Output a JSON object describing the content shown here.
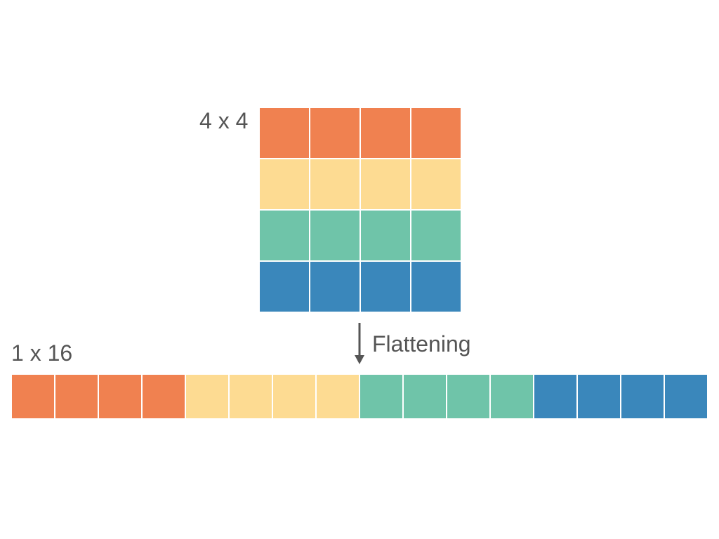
{
  "labels": {
    "matrix": "4 x 4",
    "vector": "1 x 16",
    "operation": "Flattening"
  },
  "matrix": {
    "rows": 4,
    "cols": 4,
    "row_colors": [
      "#f08150",
      "#fddb92",
      "#6fc4a9",
      "#3a87bb"
    ]
  },
  "vector": {
    "length": 16,
    "segment_size": 4,
    "segment_colors": [
      "#f08150",
      "#fddb92",
      "#6fc4a9",
      "#3a87bb"
    ]
  },
  "colors": {
    "text": "#555555",
    "arrow": "#555555"
  },
  "icons": {
    "arrow": "arrow-down-icon"
  }
}
